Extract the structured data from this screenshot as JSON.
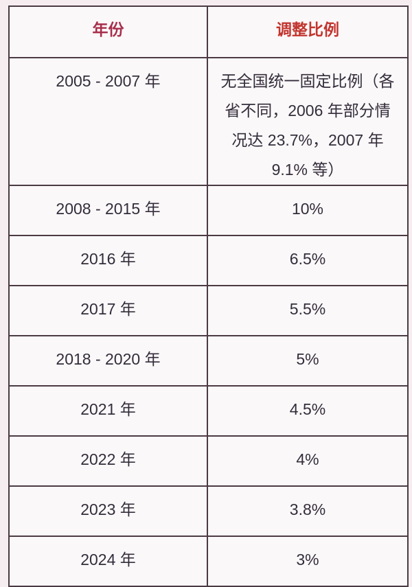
{
  "page": {
    "background_color": "#f6edf0",
    "cell_background_color": "#fbf8f9",
    "border_color": "#4a3a43",
    "body_text_color": "#332d3b"
  },
  "table": {
    "header": {
      "year_label": "年份",
      "year_label_color": "#a72e4b",
      "ratio_label": "调整比例",
      "ratio_label_color": "#c2352f"
    },
    "rows": [
      {
        "year": "2005 - 2007 年",
        "ratio": "无全国统一固定比例（各省不同，2006 年部分情况达 23.7%，2007 年 9.1% 等）"
      },
      {
        "year": "2008 - 2015 年",
        "ratio": "10%"
      },
      {
        "year": "2016 年",
        "ratio": "6.5%"
      },
      {
        "year": "2017 年",
        "ratio": "5.5%"
      },
      {
        "year": "2018 - 2020 年",
        "ratio": "5%"
      },
      {
        "year": "2021 年",
        "ratio": "4.5%"
      },
      {
        "year": "2022 年",
        "ratio": "4%"
      },
      {
        "year": "2023 年",
        "ratio": "3.8%"
      },
      {
        "year": "2024 年",
        "ratio": "3%"
      }
    ]
  }
}
